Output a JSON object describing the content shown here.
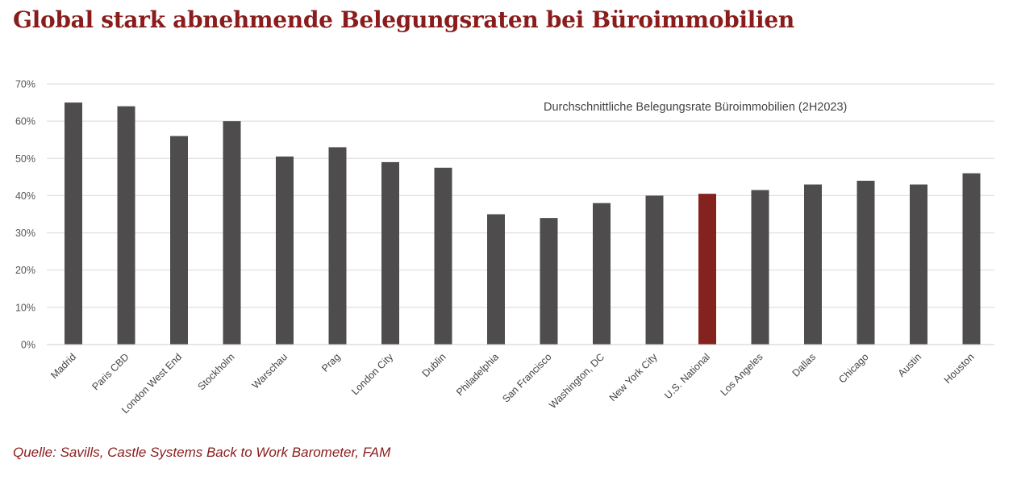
{
  "title": "Global stark abnehmende Belegungsraten bei Büroimmobilien",
  "source": "Quelle: Savills, Castle Systems Back to Work Barometer, FAM",
  "chart_data": {
    "type": "bar",
    "annotation": "Durchschnittliche Belegungsrate Büroimmobilien (2H2023)",
    "categories": [
      "Madrid",
      "Paris CBD",
      "London West End",
      "Stockholm",
      "Warschau",
      "Prag",
      "London City",
      "Dublin",
      "Philadelphia",
      "San Francisco",
      "Washington, DC",
      "New York City",
      "U.S. National",
      "Los Angeles",
      "Dallas",
      "Chicago",
      "Austin",
      "Houston"
    ],
    "values": [
      65,
      64,
      56,
      60,
      50.5,
      53,
      49,
      47.5,
      35,
      34,
      38,
      40,
      40.5,
      41.5,
      43,
      44,
      43,
      46
    ],
    "highlight": "U.S. National",
    "ylim": [
      0,
      70
    ],
    "yticks": [
      "0%",
      "10%",
      "20%",
      "30%",
      "40%",
      "50%",
      "60%",
      "70%"
    ],
    "grid": true,
    "colors": {
      "bar": "#4e4c4d",
      "highlight": "#84221f",
      "grid": "#d9d9d9"
    }
  }
}
